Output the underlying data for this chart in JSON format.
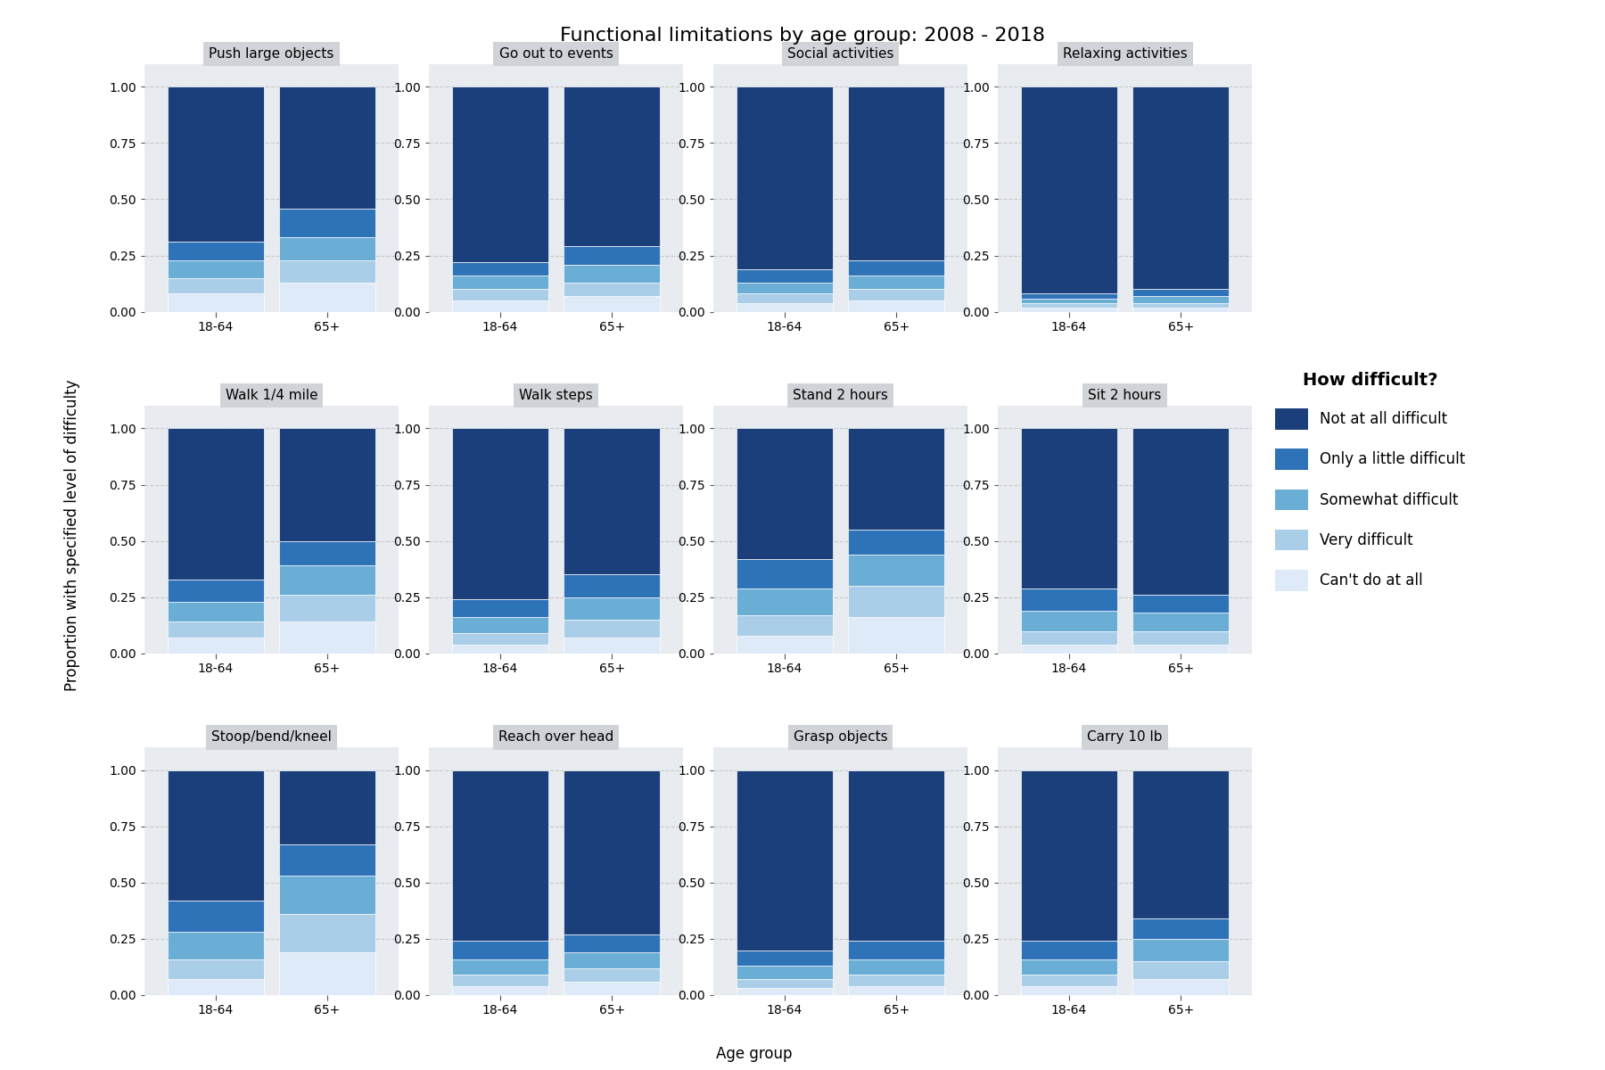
{
  "title": "Functional limitations by age group: 2008 - 2018",
  "xlabel": "Age group",
  "ylabel": "Proportion with specified level of difficulty",
  "age_groups": [
    "18-64",
    "65+"
  ],
  "difficulty_levels": [
    "Not at all difficult",
    "Only a little difficult",
    "Somewhat difficult",
    "Very difficult",
    "Can't do at all"
  ],
  "colors_bottom_to_top": [
    "#1a3f7a",
    "#2e72b8",
    "#6aadd5",
    "#aacde8",
    "#deeaf7"
  ],
  "subplots": [
    {
      "title": "Push large objects",
      "data": {
        "18-64": [
          0.08,
          0.07,
          0.08,
          0.08,
          0.69
        ],
        "65+": [
          0.13,
          0.1,
          0.1,
          0.13,
          0.54
        ]
      }
    },
    {
      "title": "Go out to events",
      "data": {
        "18-64": [
          0.05,
          0.05,
          0.06,
          0.06,
          0.78
        ],
        "65+": [
          0.07,
          0.06,
          0.08,
          0.08,
          0.71
        ]
      }
    },
    {
      "title": "Social activities",
      "data": {
        "18-64": [
          0.04,
          0.04,
          0.05,
          0.06,
          0.81
        ],
        "65+": [
          0.05,
          0.05,
          0.06,
          0.07,
          0.77
        ]
      }
    },
    {
      "title": "Relaxing activities",
      "data": {
        "18-64": [
          0.02,
          0.02,
          0.02,
          0.02,
          0.92
        ],
        "65+": [
          0.02,
          0.02,
          0.03,
          0.03,
          0.9
        ]
      }
    },
    {
      "title": "Walk 1/4 mile",
      "data": {
        "18-64": [
          0.07,
          0.07,
          0.09,
          0.1,
          0.67
        ],
        "65+": [
          0.14,
          0.12,
          0.13,
          0.11,
          0.5
        ]
      }
    },
    {
      "title": "Walk steps",
      "data": {
        "18-64": [
          0.04,
          0.05,
          0.07,
          0.08,
          0.76
        ],
        "65+": [
          0.07,
          0.08,
          0.1,
          0.1,
          0.65
        ]
      }
    },
    {
      "title": "Stand 2 hours",
      "data": {
        "18-64": [
          0.08,
          0.09,
          0.12,
          0.13,
          0.58
        ],
        "65+": [
          0.16,
          0.14,
          0.14,
          0.11,
          0.45
        ]
      }
    },
    {
      "title": "Sit 2 hours",
      "data": {
        "18-64": [
          0.04,
          0.06,
          0.09,
          0.1,
          0.71
        ],
        "65+": [
          0.04,
          0.06,
          0.08,
          0.08,
          0.74
        ]
      }
    },
    {
      "title": "Stoop/bend/kneel",
      "data": {
        "18-64": [
          0.07,
          0.09,
          0.12,
          0.14,
          0.58
        ],
        "65+": [
          0.19,
          0.17,
          0.17,
          0.14,
          0.33
        ]
      }
    },
    {
      "title": "Reach over head",
      "data": {
        "18-64": [
          0.04,
          0.05,
          0.07,
          0.08,
          0.76
        ],
        "65+": [
          0.06,
          0.06,
          0.07,
          0.08,
          0.73
        ]
      }
    },
    {
      "title": "Grasp objects",
      "data": {
        "18-64": [
          0.03,
          0.04,
          0.06,
          0.07,
          0.8
        ],
        "65+": [
          0.04,
          0.05,
          0.07,
          0.08,
          0.76
        ]
      }
    },
    {
      "title": "Carry 10 lb",
      "data": {
        "18-64": [
          0.04,
          0.05,
          0.07,
          0.08,
          0.76
        ],
        "65+": [
          0.07,
          0.08,
          0.1,
          0.09,
          0.66
        ]
      }
    }
  ],
  "background_color": "#ffffff",
  "panel_bg": "#e8ecf0",
  "panel_title_bg": "#d0d3d8",
  "bar_width": 0.38,
  "title_fontsize": 16,
  "label_fontsize": 12,
  "tick_fontsize": 10,
  "panel_title_fontsize": 11,
  "ylim": [
    0,
    1.1
  ],
  "yticks": [
    0.0,
    0.25,
    0.5,
    0.75,
    1.0
  ]
}
